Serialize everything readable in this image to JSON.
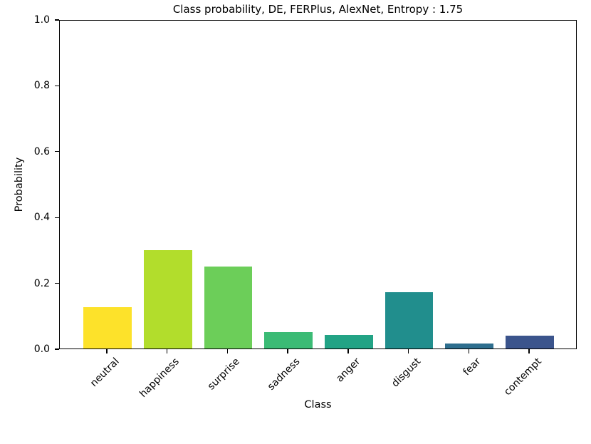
{
  "chart_data": {
    "type": "bar",
    "title": "Class probability, DE, FERPlus, AlexNet, Entropy : 1.75",
    "xlabel": "Class",
    "ylabel": "Probability",
    "categories": [
      "neutral",
      "happiness",
      "surprise",
      "sadness",
      "anger",
      "disgust",
      "fear",
      "contempt"
    ],
    "values": [
      0.126,
      0.299,
      0.25,
      0.049,
      0.041,
      0.17,
      0.016,
      0.039
    ],
    "bar_colors": [
      "#FDE22A",
      "#B2DD2C",
      "#6CCE59",
      "#3BBB75",
      "#22A385",
      "#218E8D",
      "#2E6E8E",
      "#3B548C"
    ],
    "ylim": [
      0.0,
      1.0
    ],
    "yticks": [
      "0.0",
      "0.2",
      "0.4",
      "0.6",
      "0.8",
      "1.0"
    ],
    "bar_width_fraction": 0.8,
    "x_margin_fraction": 0.05,
    "grid": false,
    "axis_color": "#000000"
  }
}
